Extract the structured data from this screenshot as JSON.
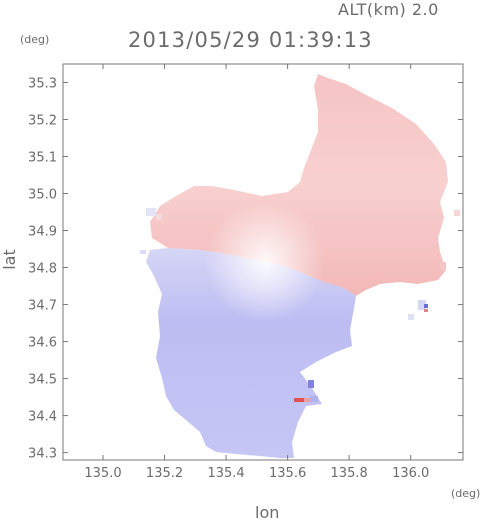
{
  "header": {
    "altitude": "ALT(km) 2.0",
    "timestamp": "2013/05/29 01:39:13"
  },
  "axes": {
    "x_unit": "(deg)",
    "y_unit": "(deg)",
    "x_label": "lon",
    "y_label": "lat"
  },
  "chart_data": {
    "type": "heatmap",
    "title": "",
    "xlabel": "lon",
    "ylabel": "lat",
    "xlim": [
      134.87,
      136.17
    ],
    "ylim": [
      34.28,
      35.35
    ],
    "x_ticks": [
      "135.0",
      "135.2",
      "135.4",
      "135.6",
      "135.8",
      "136.0"
    ],
    "y_ticks": [
      "35.3",
      "35.2",
      "35.1",
      "35.0",
      "34.9",
      "34.8",
      "34.7",
      "34.6",
      "34.5",
      "34.4",
      "34.3"
    ],
    "radar_center": {
      "lon": 135.52,
      "lat": 34.82
    },
    "colors": {
      "positive": "#f6c8c8",
      "negative": "#c8c8f6",
      "positive_strong": "#ee8888",
      "negative_strong": "#9a9af0"
    }
  }
}
